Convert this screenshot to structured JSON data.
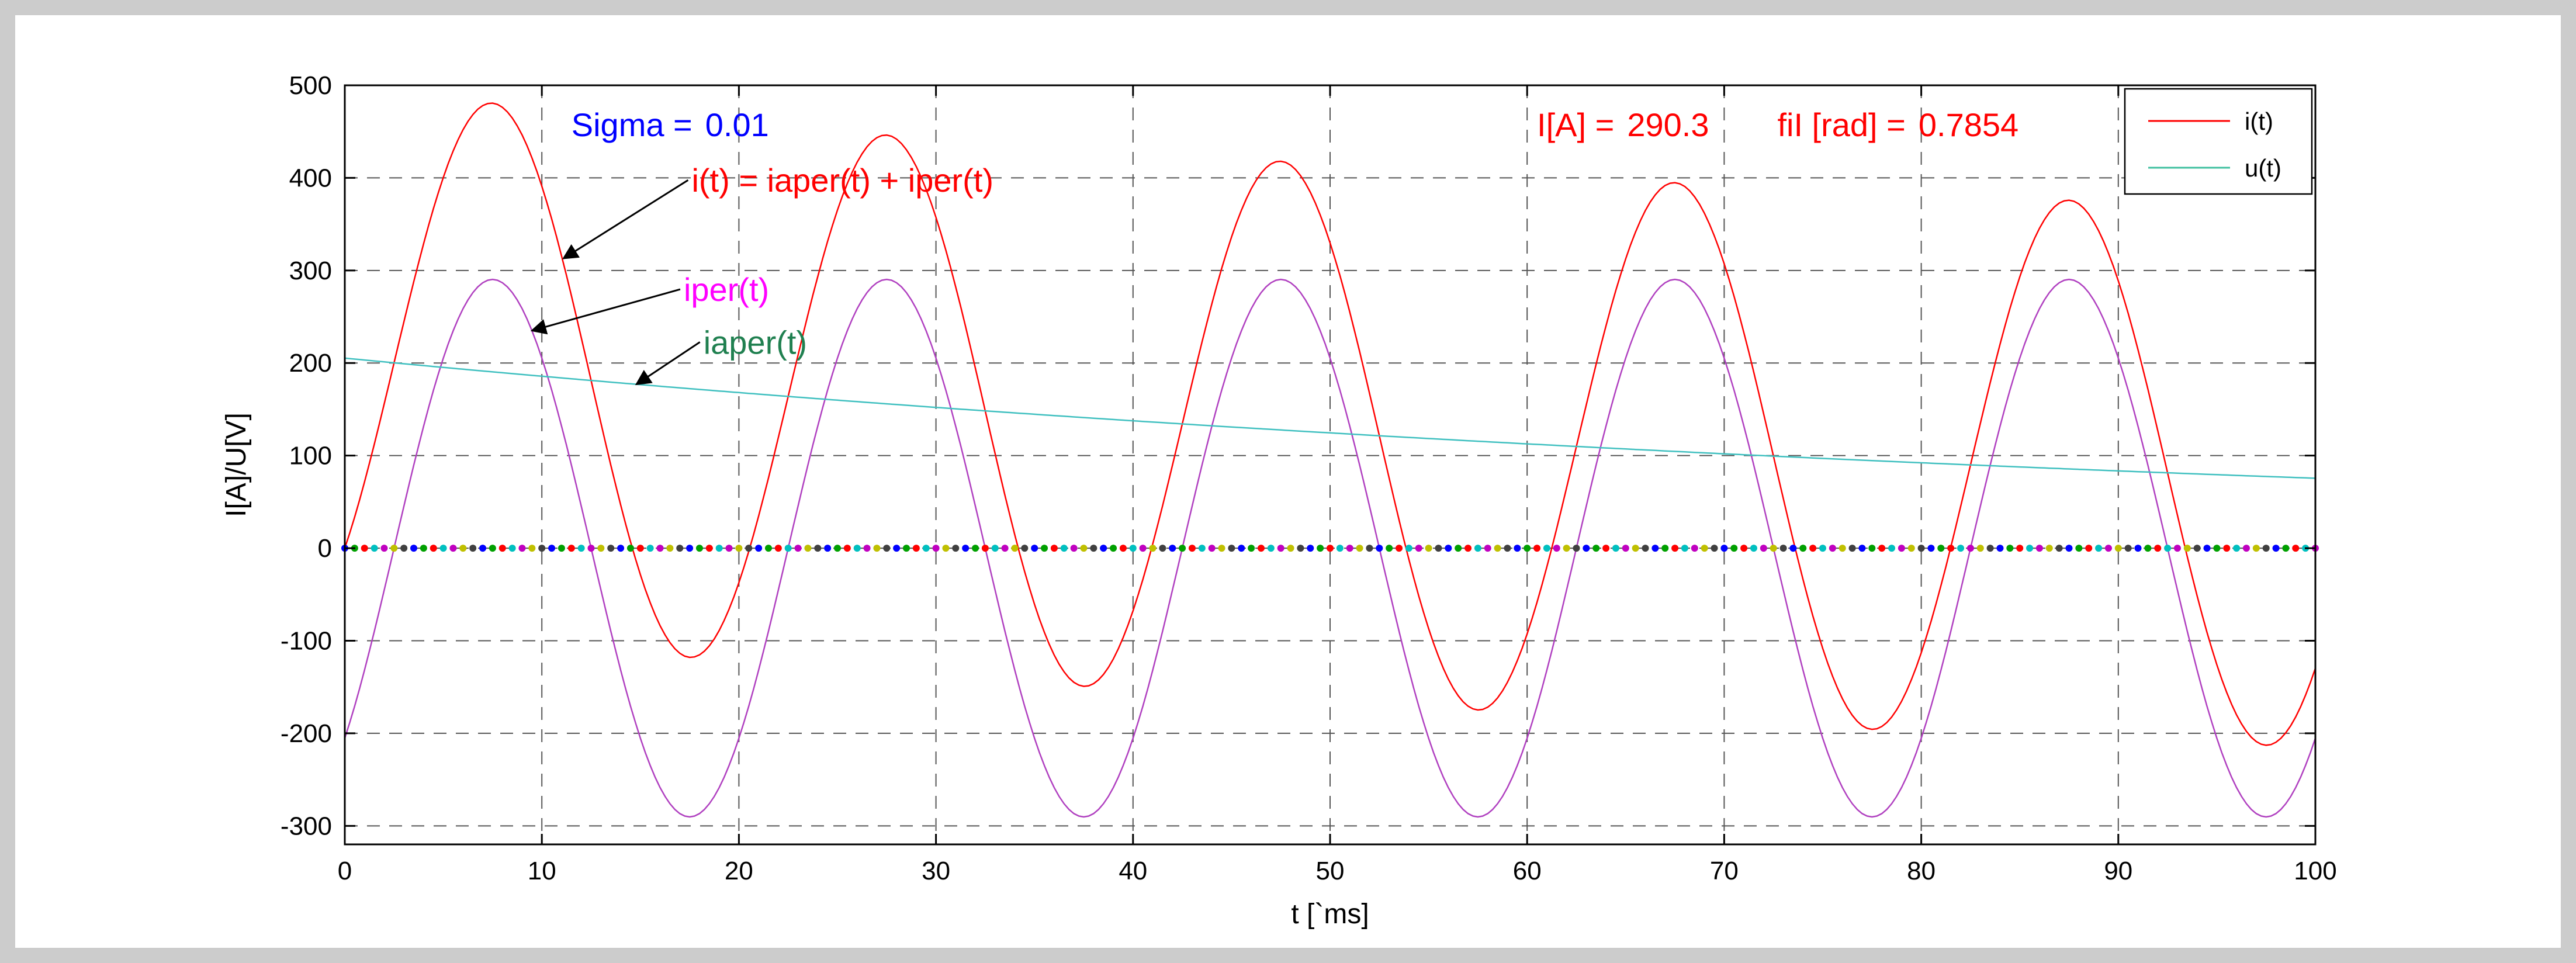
{
  "figure": {
    "background": "#cccccc",
    "panel_background": "#ffffff"
  },
  "chart_data": {
    "type": "line",
    "xlabel": "t [`ms]",
    "ylabel": "I[A]/U[V]",
    "xlim": [
      0,
      100
    ],
    "ylim": [
      -320,
      500
    ],
    "xticks": [
      0,
      10,
      20,
      30,
      40,
      50,
      60,
      70,
      80,
      90,
      100
    ],
    "yticks": [
      -300,
      -200,
      -100,
      0,
      100,
      200,
      300,
      400,
      500
    ],
    "grid": true,
    "grid_style": "dashed",
    "legend": {
      "position": "top-right",
      "entries": [
        {
          "label": "i(t)",
          "color": "#ff0000"
        },
        {
          "label": "u(t)",
          "color": "#40c0a0"
        }
      ]
    },
    "annotations": [
      {
        "text_parts": [
          {
            "text": "Sigma =",
            "color": "#0000ff"
          },
          {
            "text": "0.01",
            "color": "#0000ff"
          }
        ],
        "x": 11.5,
        "y": 445,
        "anchor": "start"
      },
      {
        "text_parts": [
          {
            "text": "I[A] =",
            "color": "#ff0000"
          },
          {
            "text": "290.3",
            "color": "#ff0000"
          }
        ],
        "x": 60.5,
        "y": 445,
        "anchor": "start"
      },
      {
        "text_parts": [
          {
            "text": "fiI [rad] =",
            "color": "#ff0000"
          },
          {
            "text": "0.7854",
            "color": "#ff0000"
          }
        ],
        "x": 72.7,
        "y": 445,
        "anchor": "start"
      },
      {
        "text_parts": [
          {
            "text": "i(t) = iaper(t) + iper(t)",
            "color": "#ff0000"
          }
        ],
        "x": 17.6,
        "y": 385,
        "anchor": "start",
        "arrow_to": [
          11.1,
          313
        ]
      },
      {
        "text_parts": [
          {
            "text": "iper(t)",
            "color": "#ff00ff"
          }
        ],
        "x": 17.2,
        "y": 267,
        "anchor": "start",
        "arrow_to": [
          9.5,
          235
        ]
      },
      {
        "text_parts": [
          {
            "text": "iaper(t)",
            "color": "#208050"
          }
        ],
        "x": 18.2,
        "y": 210,
        "anchor": "start",
        "arrow_to": [
          14.8,
          177
        ]
      }
    ],
    "series": [
      {
        "name": "i(t)",
        "color": "#ff0000",
        "sampling": {
          "t_start": 0,
          "t_end": 100,
          "step": 0.25
        },
        "model": "iaper(t) + iper(t)"
      },
      {
        "name": "iper(t)",
        "color": "#b040c0",
        "model": "290.3*sin(2*pi*50*t/1000 - 0.7854)"
      },
      {
        "name": "iaper(t)",
        "color": "#40c0c0",
        "model": "205.3*exp(-t/100)"
      },
      {
        "name": "u(t)",
        "color": "#40c0a0",
        "values_constant": 0,
        "marker": "dots",
        "marker_colors": [
          "#0000ff",
          "#00a000",
          "#ff0000",
          "#00c0c0",
          "#c000c0",
          "#c0c000",
          "#404040"
        ]
      }
    ],
    "parameters": {
      "amplitude_A": 290.3,
      "phase_rad": 0.7854,
      "frequency_hz": 50,
      "decay_ms": 100,
      "sigma": 0.01
    }
  }
}
